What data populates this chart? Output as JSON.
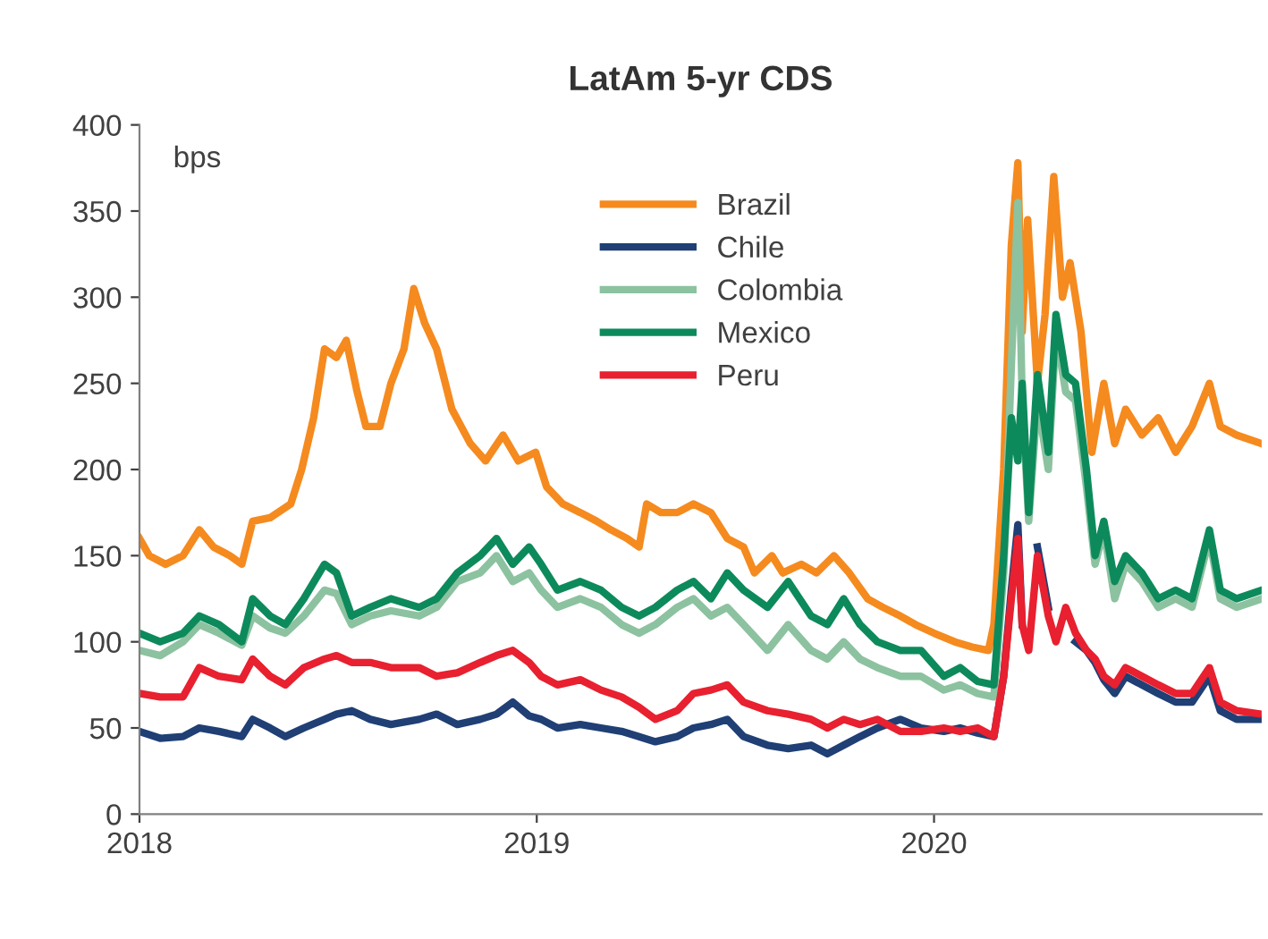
{
  "chart_data": {
    "type": "line",
    "title": "LatAm 5-yr CDS",
    "ylabel": "bps",
    "x": [
      "2018-01-01",
      "2018-01-20",
      "2018-02-10",
      "2018-02-25",
      "2018-03-15",
      "2018-04-05",
      "2018-04-15",
      "2018-05-01",
      "2018-05-15",
      "2018-06-01",
      "2018-06-20",
      "2018-07-01",
      "2018-07-15",
      "2018-08-01",
      "2018-08-20",
      "2018-09-15",
      "2018-10-01",
      "2018-10-20",
      "2018-11-10",
      "2018-11-25",
      "2018-12-10",
      "2018-12-25",
      "2019-01-05",
      "2019-01-20",
      "2019-02-10",
      "2019-03-01",
      "2019-03-20",
      "2019-04-05",
      "2019-04-20",
      "2019-05-10",
      "2019-05-25",
      "2019-06-10",
      "2019-06-25",
      "2019-07-10",
      "2019-08-01",
      "2019-08-20",
      "2019-09-10",
      "2019-09-25",
      "2019-10-10",
      "2019-10-25",
      "2019-11-10",
      "2019-12-01",
      "2019-12-20",
      "2020-01-10",
      "2020-01-25",
      "2020-02-10",
      "2020-02-25",
      "2020-03-05",
      "2020-03-12",
      "2020-03-18",
      "2020-03-22",
      "2020-03-28",
      "2020-04-05",
      "2020-04-15",
      "2020-04-22",
      "2020-05-01",
      "2020-05-10",
      "2020-05-20",
      "2020-05-28",
      "2020-06-05",
      "2020-06-15",
      "2020-06-25",
      "2020-07-10",
      "2020-07-25",
      "2020-08-10",
      "2020-08-25",
      "2020-09-10",
      "2020-09-20",
      "2020-10-05",
      "2020-10-28"
    ],
    "series": [
      {
        "name": "Brazil",
        "color": "#f58a1f",
        "x": [
          "2018-01-01",
          "2018-01-10",
          "2018-01-25",
          "2018-02-10",
          "2018-02-25",
          "2018-03-10",
          "2018-03-25",
          "2018-04-05",
          "2018-04-15",
          "2018-05-01",
          "2018-05-20",
          "2018-05-30",
          "2018-06-10",
          "2018-06-20",
          "2018-07-01",
          "2018-07-10",
          "2018-07-20",
          "2018-07-28",
          "2018-08-10",
          "2018-08-20",
          "2018-09-01",
          "2018-09-10",
          "2018-09-20",
          "2018-10-01",
          "2018-10-15",
          "2018-11-01",
          "2018-11-15",
          "2018-12-01",
          "2018-12-15",
          "2018-12-31",
          "2019-01-10",
          "2019-01-25",
          "2019-02-10",
          "2019-02-25",
          "2019-03-10",
          "2019-03-25",
          "2019-04-05",
          "2019-04-12",
          "2019-04-25",
          "2019-05-10",
          "2019-05-25",
          "2019-06-10",
          "2019-06-25",
          "2019-07-10",
          "2019-07-20",
          "2019-08-05",
          "2019-08-15",
          "2019-09-01",
          "2019-09-15",
          "2019-10-01",
          "2019-10-15",
          "2019-11-01",
          "2019-11-15",
          "2019-12-01",
          "2019-12-15",
          "2020-01-01",
          "2020-01-20",
          "2020-02-05",
          "2020-02-20",
          "2020-02-25",
          "2020-03-05",
          "2020-03-12",
          "2020-03-18",
          "2020-03-22",
          "2020-03-27",
          "2020-04-05",
          "2020-04-12",
          "2020-04-20",
          "2020-04-28",
          "2020-05-05",
          "2020-05-15",
          "2020-05-25",
          "2020-06-05",
          "2020-06-15",
          "2020-06-25",
          "2020-07-10",
          "2020-07-25",
          "2020-08-10",
          "2020-08-25",
          "2020-09-10",
          "2020-09-20",
          "2020-10-05",
          "2020-10-28"
        ],
        "values": [
          160,
          150,
          145,
          150,
          165,
          155,
          150,
          145,
          170,
          172,
          180,
          200,
          230,
          270,
          265,
          275,
          245,
          225,
          225,
          250,
          270,
          305,
          285,
          270,
          235,
          215,
          205,
          220,
          205,
          210,
          190,
          180,
          175,
          170,
          165,
          160,
          155,
          180,
          175,
          175,
          180,
          175,
          160,
          155,
          140,
          150,
          140,
          145,
          140,
          150,
          140,
          125,
          120,
          115,
          110,
          105,
          100,
          97,
          95,
          110,
          200,
          330,
          378,
          280,
          345,
          250,
          290,
          370,
          300,
          320,
          280,
          210,
          250,
          215,
          235,
          220,
          230,
          210,
          225,
          250,
          225,
          220,
          215
        ]
      },
      {
        "name": "Chile",
        "color": "#1f3f75",
        "values": [
          48,
          44,
          45,
          50,
          48,
          45,
          55,
          50,
          45,
          50,
          55,
          58,
          60,
          55,
          52,
          55,
          58,
          52,
          55,
          58,
          65,
          57,
          55,
          50,
          52,
          50,
          48,
          45,
          42,
          45,
          50,
          52,
          55,
          45,
          40,
          38,
          40,
          35,
          40,
          45,
          50,
          55,
          50,
          48,
          50,
          47,
          45,
          80,
          130,
          168,
          110,
          null,
          155,
          120,
          null,
          null,
          100,
          95,
          88,
          78,
          70,
          80,
          75,
          70,
          65,
          65,
          80,
          60,
          55,
          55
        ]
      },
      {
        "name": "Colombia",
        "color": "#8cc2a0",
        "values": [
          95,
          92,
          100,
          110,
          105,
          98,
          115,
          108,
          105,
          115,
          130,
          128,
          110,
          115,
          118,
          115,
          120,
          135,
          140,
          150,
          135,
          140,
          130,
          120,
          125,
          120,
          110,
          105,
          110,
          120,
          125,
          115,
          120,
          110,
          95,
          110,
          95,
          90,
          100,
          90,
          85,
          80,
          80,
          72,
          75,
          70,
          68,
          140,
          260,
          355,
          240,
          170,
          240,
          200,
          280,
          245,
          240,
          190,
          145,
          165,
          125,
          145,
          135,
          120,
          125,
          120,
          160,
          125,
          120,
          125
        ]
      },
      {
        "name": "Mexico",
        "color": "#0d8a5c",
        "values": [
          105,
          100,
          105,
          115,
          110,
          100,
          125,
          115,
          110,
          125,
          145,
          140,
          115,
          120,
          125,
          120,
          125,
          140,
          150,
          160,
          145,
          155,
          145,
          130,
          135,
          130,
          120,
          115,
          120,
          130,
          135,
          125,
          140,
          130,
          120,
          135,
          115,
          110,
          125,
          110,
          100,
          95,
          95,
          80,
          85,
          77,
          75,
          150,
          230,
          205,
          250,
          175,
          255,
          210,
          290,
          255,
          250,
          200,
          150,
          170,
          135,
          150,
          140,
          125,
          130,
          125,
          165,
          130,
          125,
          130
        ]
      },
      {
        "name": "Peru",
        "color": "#e8202f",
        "values": [
          70,
          68,
          68,
          85,
          80,
          78,
          90,
          80,
          75,
          85,
          90,
          92,
          88,
          88,
          85,
          85,
          80,
          82,
          88,
          92,
          95,
          88,
          80,
          75,
          78,
          72,
          68,
          62,
          55,
          60,
          70,
          72,
          75,
          65,
          60,
          58,
          55,
          50,
          55,
          52,
          55,
          48,
          48,
          50,
          48,
          50,
          45,
          80,
          125,
          160,
          110,
          95,
          150,
          115,
          100,
          120,
          105,
          95,
          90,
          80,
          75,
          85,
          80,
          75,
          70,
          70,
          85,
          65,
          60,
          58
        ]
      }
    ],
    "xlim": [
      "2018-01-01",
      "2020-10-28"
    ],
    "xticks": [
      {
        "value": "2018-01-01",
        "label": "2018"
      },
      {
        "value": "2019-01-01",
        "label": "2019"
      },
      {
        "value": "2020-01-01",
        "label": "2020"
      }
    ],
    "ylim": [
      0,
      400
    ],
    "yticks": [
      0,
      50,
      100,
      150,
      200,
      250,
      300,
      350,
      400
    ],
    "grid": false,
    "legend": "top",
    "line_style": "solid"
  }
}
